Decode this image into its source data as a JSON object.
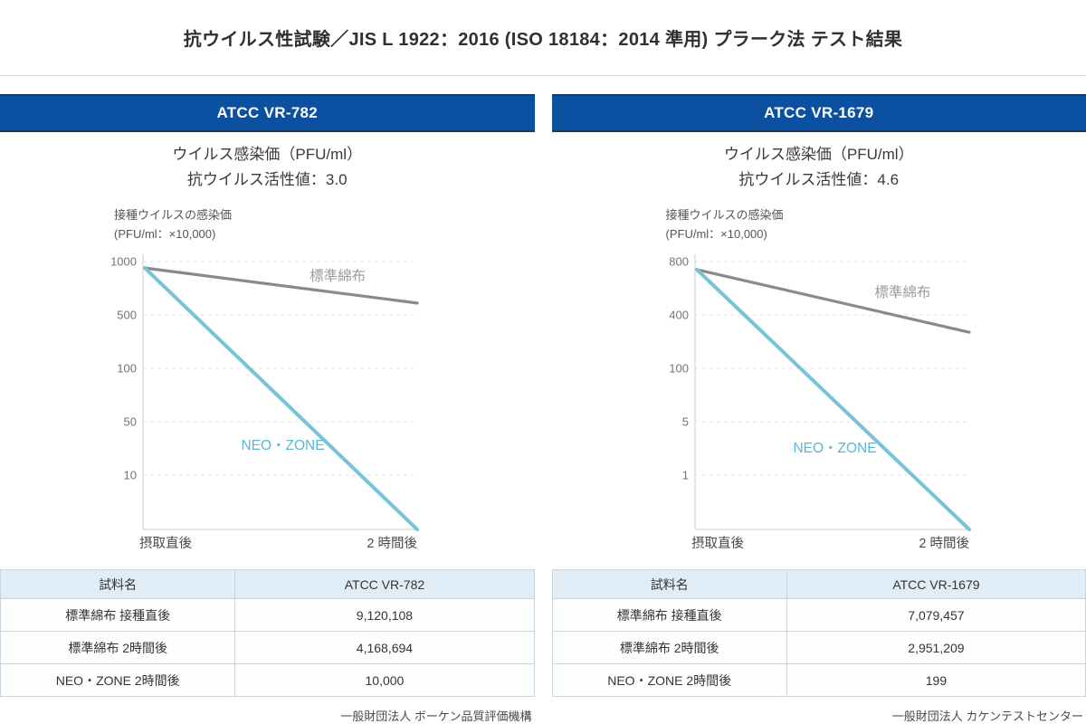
{
  "title": "抗ウイルス性試験／JIS L 1922：2016 (ISO 18184：2014 準用) プラーク法 テスト結果",
  "colors": {
    "accent_blue": "#0c51a1",
    "band_edge": "#143d5f",
    "line_gray": "#8a8a8a",
    "line_blue": "#79c3d8",
    "table_header_bg": "#e0edf7",
    "table_border": "#c9d6e2"
  },
  "panels": [
    {
      "band": "ATCC VR-782",
      "subtitle": "ウイルス感染価（PFU/ml）",
      "activity": "抗ウイルス活性値：3.0",
      "axis_note_line1": "接種ウイルスの感染価",
      "axis_note_line2": "(PFU/ml：×10,000)",
      "table": {
        "header": [
          "試料名",
          "ATCC VR-782"
        ],
        "rows": [
          [
            "標準綿布 接種直後",
            "9,120,108"
          ],
          [
            "標準綿布 2時間後",
            "4,168,694"
          ],
          [
            "NEO・ZONE 2時間後",
            "10,000"
          ]
        ]
      },
      "footer": "一般財団法人 ボーケン品質評価機構"
    },
    {
      "band": "ATCC VR-1679",
      "subtitle": "ウイルス感染価（PFU/ml）",
      "activity": "抗ウイルス活性値：4.6",
      "axis_note_line1": "接種ウイルスの感染価",
      "axis_note_line2": "(PFU/ml：×10,000)",
      "table": {
        "header": [
          "試料名",
          "ATCC VR-1679"
        ],
        "rows": [
          [
            "標準綿布 接種直後",
            "7,079,457"
          ],
          [
            "標準綿布 2時間後",
            "2,951,209"
          ],
          [
            "NEO・ZONE 2時間後",
            "199"
          ]
        ]
      },
      "footer": "一般財団法人 カケンテストセンター"
    }
  ],
  "chart_data": [
    {
      "type": "line",
      "title": "ATCC VR-782 ウイルス感染価（PFU/ml：×10,000）",
      "x_categories": [
        "摂取直後",
        "2 時間後"
      ],
      "y_ticks": [
        "1000",
        "500",
        "100",
        "50",
        "10"
      ],
      "grid": "dashed-horizontal",
      "legend_position": "inline-labels",
      "series": [
        {
          "id": "standard-cotton",
          "name": "標準綿布",
          "values": [
            912,
            417
          ],
          "color": "#8a8a8a",
          "label_color": "#9b9b9b",
          "width": 3.2,
          "draw_y_frac": [
            0.024,
            0.155
          ],
          "label_pos": [
            0.71,
            0.071
          ]
        },
        {
          "id": "neo-zone",
          "name": "NEO・ZONE",
          "values": [
            912,
            1
          ],
          "color": "#79c3d8",
          "label_color": "#5cb6d2",
          "width": 4,
          "draw_y_frac": [
            0.024,
            1.0
          ],
          "label_pos": [
            0.51,
            0.703
          ]
        }
      ]
    },
    {
      "type": "line",
      "title": "ATCC VR-1679 ウイルス感染価（PFU/ml：×10,000）",
      "x_categories": [
        "摂取直後",
        "2 時間後"
      ],
      "y_ticks": [
        "800",
        "400",
        "100",
        "5",
        "1"
      ],
      "grid": "dashed-horizontal",
      "legend_position": "inline-labels",
      "series": [
        {
          "id": "standard-cotton",
          "name": "標準綿布",
          "values": [
            708,
            295
          ],
          "color": "#8a8a8a",
          "label_color": "#9b9b9b",
          "width": 3.2,
          "draw_y_frac": [
            0.03,
            0.264
          ],
          "label_pos": [
            0.757,
            0.132
          ]
        },
        {
          "id": "neo-zone",
          "name": "NEO・ZONE",
          "values": [
            708,
            0.02
          ],
          "color": "#79c3d8",
          "label_color": "#5cb6d2",
          "width": 4,
          "draw_y_frac": [
            0.03,
            1.0
          ],
          "label_pos": [
            0.51,
            0.713
          ]
        }
      ]
    }
  ]
}
